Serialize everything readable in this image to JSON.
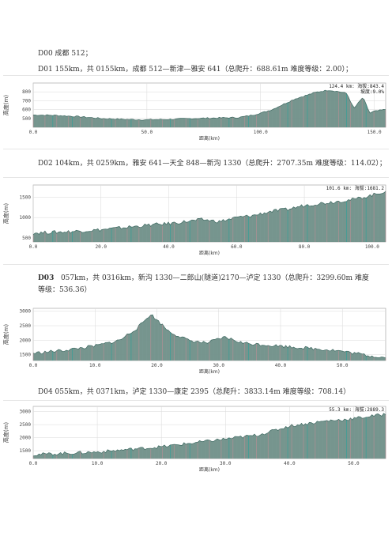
{
  "lines": [
    {
      "text": "D00 成都 512；"
    },
    {
      "text": "D01 155km，共 0155km，成都 512—新津—雅安 641（总爬升：688.61m 难度等级：2.00）；"
    },
    {
      "text": "D02 104km，共 0259km，雅安 641—天全 848—新沟 1330（总爬升：2707.35m 难度等级：114.02）；"
    },
    {
      "label": "D03",
      "text": "057km，共 0316km，新沟 1330—二郎山(隧道)2170—泸定 1330（总爬升：3299.60m 难度",
      "cont": "等级：536.36）"
    },
    {
      "text": "D04 055km，共 0371km，泸定 1330—康定 2395（总爬升：3833.14m  难度等级：708.14）"
    }
  ],
  "chart_data": [
    {
      "type": "area",
      "title": "",
      "xlabel": "距离(km)",
      "ylabel": "高度(m)",
      "xlim": [
        0,
        155
      ],
      "ylim": [
        400,
        900
      ],
      "xticks": [
        "0.0",
        "50.0",
        "100.0",
        "150.0"
      ],
      "yticks": [
        "500",
        "600",
        "700",
        "800"
      ],
      "readout": [
        "124.4 km: 海拔:843.4",
        "坡度:9.0%"
      ],
      "x": [
        0,
        10,
        20,
        30,
        40,
        50,
        60,
        70,
        80,
        90,
        95,
        100,
        105,
        110,
        115,
        120,
        125,
        130,
        135,
        138,
        141,
        145,
        148,
        150,
        155
      ],
      "values": [
        540,
        535,
        520,
        500,
        490,
        485,
        490,
        500,
        505,
        510,
        530,
        560,
        600,
        660,
        720,
        760,
        800,
        820,
        800,
        780,
        610,
        740,
        560,
        580,
        600
      ]
    },
    {
      "type": "area",
      "title": "",
      "xlabel": "距离(km)",
      "ylabel": "高度(m)",
      "xlim": [
        0,
        104
      ],
      "ylim": [
        400,
        1800
      ],
      "xticks": [
        "0.0",
        "20.0",
        "40.0",
        "60.0",
        "80.0",
        "100.0"
      ],
      "yticks": [
        "500",
        "1000",
        "1500"
      ],
      "readout": [
        "101.6 km: 海拔:1681.2"
      ],
      "x": [
        0,
        10,
        20,
        30,
        35,
        40,
        45,
        50,
        55,
        60,
        65,
        70,
        75,
        80,
        85,
        90,
        95,
        100,
        104
      ],
      "values": [
        620,
        650,
        700,
        780,
        820,
        850,
        900,
        950,
        900,
        1000,
        1050,
        1150,
        1200,
        1300,
        1350,
        1400,
        1450,
        1550,
        1650
      ]
    },
    {
      "type": "area",
      "title": "",
      "xlabel": "距离(km)",
      "ylabel": "高度(m)",
      "xlim": [
        0,
        57
      ],
      "ylim": [
        1300,
        3100
      ],
      "xticks": [
        "0.0",
        "10.0",
        "20.0",
        "30.0",
        "40.0",
        "50.0"
      ],
      "yticks": [
        "1500",
        "2000",
        "2500",
        "3000"
      ],
      "readout": [],
      "x": [
        0,
        5,
        10,
        14,
        17,
        19,
        22,
        25,
        28,
        31,
        34,
        37,
        40,
        43,
        46,
        49,
        52,
        55,
        57
      ],
      "values": [
        1550,
        1650,
        1800,
        2000,
        2450,
        2900,
        2300,
        2000,
        1900,
        2100,
        1900,
        1850,
        1800,
        1750,
        1700,
        1650,
        1550,
        1450,
        1400
      ]
    },
    {
      "type": "area",
      "title": "",
      "xlabel": "距离(km)",
      "ylabel": "高度(m)",
      "xlim": [
        0,
        55
      ],
      "ylim": [
        1200,
        3200
      ],
      "xticks": [
        "0.0",
        "10.0",
        "20.0",
        "30.0",
        "40.0",
        "50.0"
      ],
      "yticks": [
        "1500",
        "2000",
        "2500",
        "3000"
      ],
      "readout": [
        "55.3 km: 海拔:2889.3"
      ],
      "x": [
        0,
        5,
        10,
        15,
        20,
        25,
        30,
        35,
        38,
        40,
        43,
        46,
        49,
        52,
        55
      ],
      "values": [
        1350,
        1400,
        1450,
        1550,
        1650,
        1800,
        1950,
        2100,
        2300,
        2450,
        2550,
        2650,
        2700,
        2800,
        2900
      ]
    }
  ],
  "colors": {
    "fill": "#6f8f88",
    "stroke": "#3f6a62",
    "pink": "#c98e98",
    "teal": "#1aa59a",
    "grid": "#d9d9d9",
    "frame": "#9a9a9a"
  }
}
